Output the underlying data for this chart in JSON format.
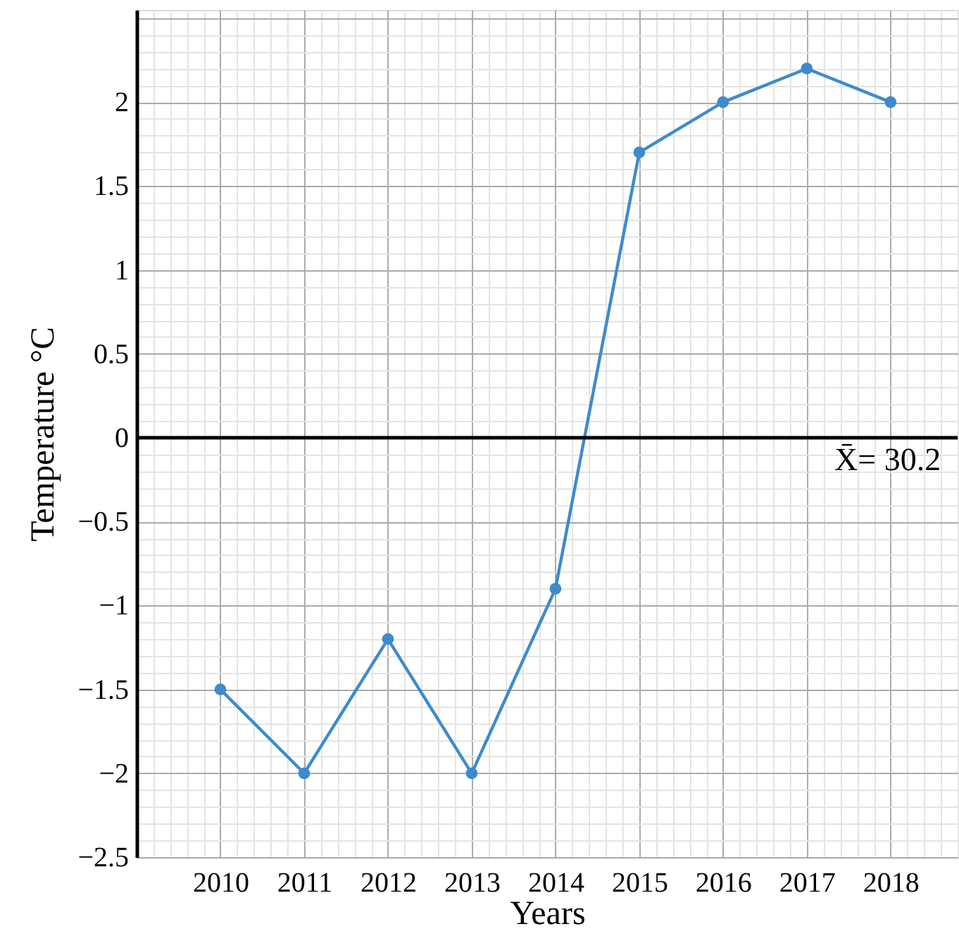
{
  "chart_data": {
    "type": "line",
    "xlabel": "Years",
    "ylabel": "Temperature °C",
    "x": [
      2010,
      2011,
      2012,
      2013,
      2014,
      2015,
      2016,
      2017,
      2018
    ],
    "series": [
      {
        "color": "#3d8bcd",
        "values": [
          -1.5,
          -2,
          -1.2,
          -2,
          -0.9,
          1.7,
          2,
          2.2,
          2
        ]
      }
    ],
    "xlim": [
      2009,
      2018.8
    ],
    "ylim": [
      -2.5,
      2.55
    ],
    "xticks": [
      2010,
      2011,
      2012,
      2013,
      2014,
      2015,
      2016,
      2017,
      2018
    ],
    "yticks": [
      -2.5,
      -2,
      -1.5,
      -1,
      -0.5,
      0,
      0.5,
      1,
      1.5,
      2,
      {
        "value": 2.5,
        "label": null
      }
    ],
    "ref_lines": [
      {
        "axis": "y",
        "value": 0,
        "color": "#000000"
      }
    ],
    "annotations": [
      {
        "text": "X̄= 30.2",
        "x": 2018.6,
        "y": 0
      }
    ],
    "grid": true,
    "marker": "circle",
    "line_style": "solid"
  }
}
